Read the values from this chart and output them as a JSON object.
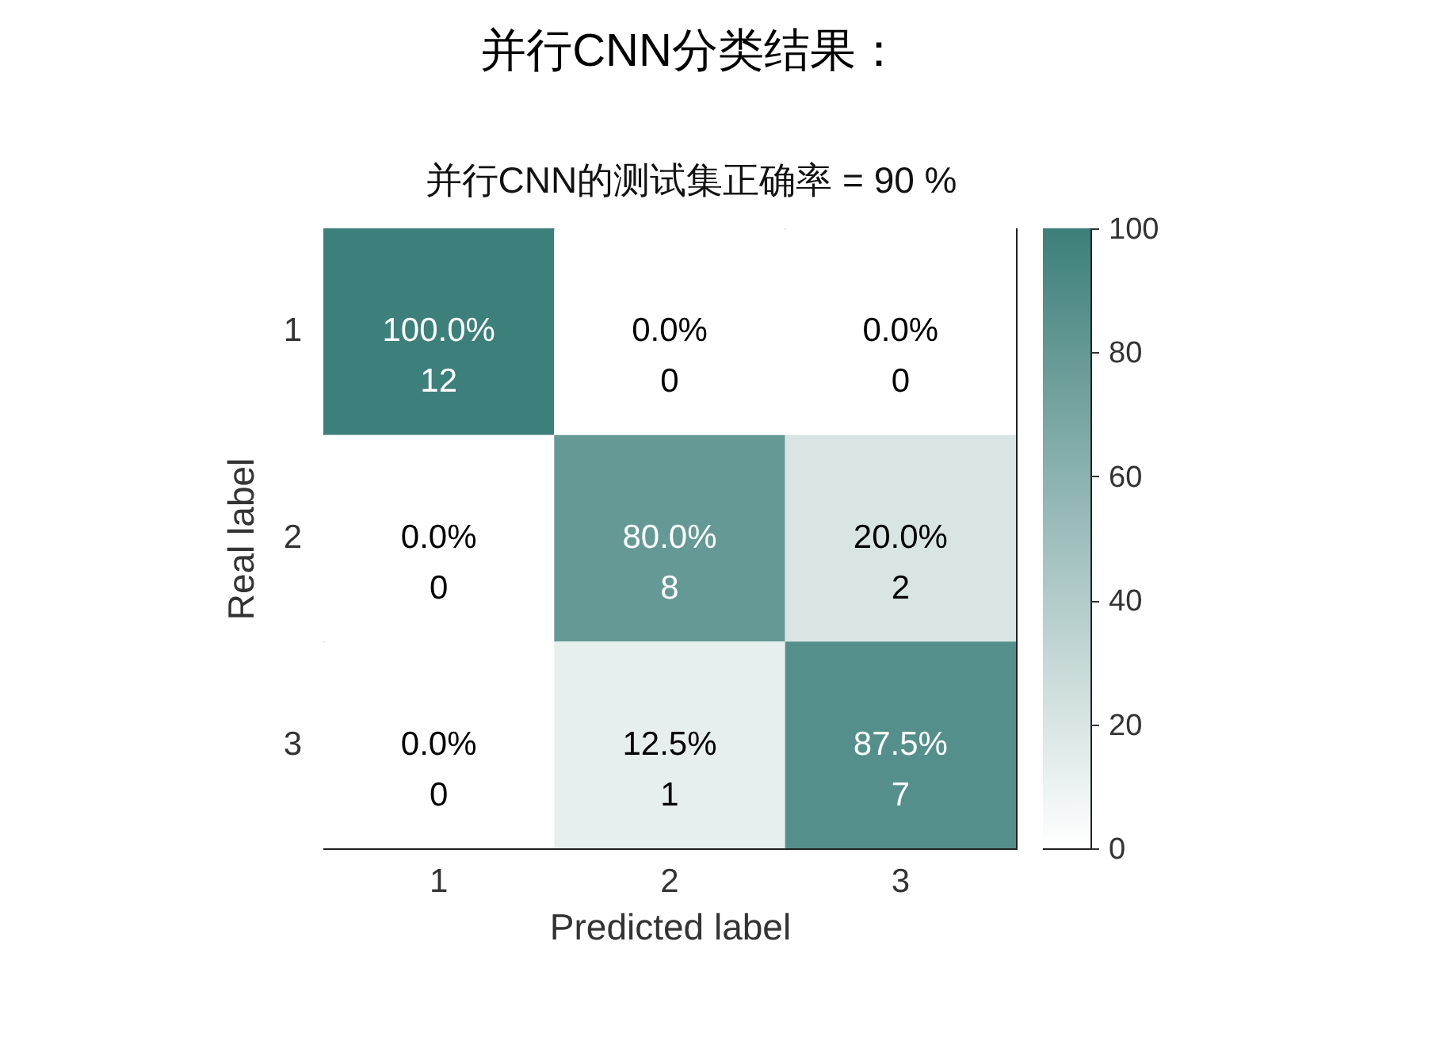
{
  "chart_data": {
    "type": "heatmap",
    "title": "并行CNN分类结果：",
    "subtitle": "并行CNN的测试集正确率 = 90 %",
    "xlabel": "Predicted label",
    "ylabel": "Real label",
    "categories": [
      "1",
      "2",
      "3"
    ],
    "y_categories": [
      "1",
      "2",
      "3"
    ],
    "cells": [
      [
        100,
        0,
        0
      ],
      [
        0,
        80,
        20
      ],
      [
        0,
        12.5,
        87.5
      ]
    ],
    "cell_labels": [
      [
        "100.0%\n12",
        "0.0%\n0",
        "0.0%\n0"
      ],
      [
        "0.0%\n0",
        "80.0%\n8",
        "20.0%\n2"
      ],
      [
        "0.0%\n0",
        "12.5%\n1",
        "87.5%\n7"
      ]
    ],
    "color": "#3d7f7a",
    "clim": [
      0,
      100
    ],
    "cticks": [
      0,
      20,
      40,
      60,
      80,
      100
    ]
  }
}
